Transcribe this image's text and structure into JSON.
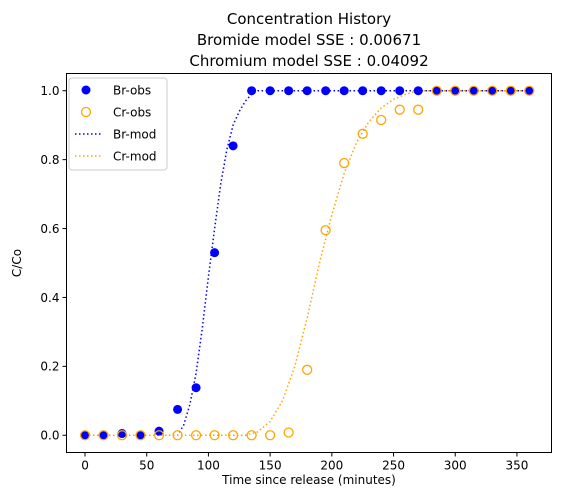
{
  "chart_data": {
    "type": "scatter",
    "title_lines": [
      "Concentration History",
      "Bromide model SSE : 0.00671",
      "Chromium model SSE : 0.04092"
    ],
    "xlabel": "Time since release (minutes)",
    "ylabel": "C/Co",
    "xlim": [
      -15,
      378
    ],
    "ylim": [
      -0.05,
      1.05
    ],
    "xticks": [
      0,
      50,
      100,
      150,
      200,
      250,
      300,
      350
    ],
    "yticks": [
      0.0,
      0.2,
      0.4,
      0.6,
      0.8,
      1.0
    ],
    "ytick_labels": [
      "0.0",
      "0.2",
      "0.4",
      "0.6",
      "0.8",
      "1.0"
    ],
    "grid": false,
    "legend_position": "upper-left",
    "series": [
      {
        "name": "Br-obs",
        "kind": "marker-filled",
        "color": "#0000ff",
        "x": [
          0,
          15,
          30,
          45,
          60,
          75,
          90,
          105,
          120,
          135,
          150,
          165,
          180,
          195,
          210,
          225,
          240,
          255,
          270,
          285,
          300,
          315,
          330,
          345,
          360
        ],
        "y": [
          0.0,
          0.0,
          0.005,
          0.0,
          0.012,
          0.075,
          0.138,
          0.53,
          0.84,
          1.0,
          1.0,
          1.0,
          1.0,
          1.0,
          1.0,
          1.0,
          1.0,
          1.0,
          1.0,
          1.0,
          1.0,
          1.0,
          1.0,
          1.0,
          1.0
        ]
      },
      {
        "name": "Cr-obs",
        "kind": "marker-open",
        "color": "#ffa500",
        "x": [
          0,
          15,
          30,
          45,
          60,
          75,
          90,
          105,
          120,
          135,
          150,
          165,
          180,
          195,
          210,
          225,
          240,
          255,
          270,
          285,
          300,
          315,
          330,
          345,
          360
        ],
        "y": [
          0.0,
          0.0,
          0.0,
          0.0,
          0.0,
          0.0,
          0.0,
          0.0,
          0.0,
          0.0,
          0.0,
          0.008,
          0.19,
          0.595,
          0.79,
          0.875,
          0.915,
          0.945,
          0.945,
          1.0,
          1.0,
          1.0,
          1.0,
          1.0,
          1.0
        ]
      },
      {
        "name": "Br-mod",
        "kind": "line-dotted",
        "color": "#0000ff",
        "x": [
          0,
          15,
          30,
          45,
          60,
          75,
          80,
          85,
          90,
          95,
          100,
          105,
          110,
          115,
          120,
          125,
          130,
          135,
          140,
          150,
          165,
          180,
          200,
          250,
          300,
          360
        ],
        "y": [
          0.0,
          0.0,
          0.0,
          0.0,
          0.0,
          0.0,
          0.03,
          0.09,
          0.18,
          0.31,
          0.46,
          0.6,
          0.73,
          0.83,
          0.9,
          0.94,
          0.97,
          0.99,
          1.0,
          1.0,
          1.0,
          1.0,
          1.0,
          1.0,
          1.0,
          1.0
        ]
      },
      {
        "name": "Cr-mod",
        "kind": "line-dotted",
        "color": "#ffa500",
        "x": [
          0,
          30,
          60,
          90,
          120,
          130,
          140,
          150,
          160,
          170,
          180,
          190,
          200,
          210,
          220,
          230,
          240,
          250,
          260,
          270,
          285,
          300,
          330,
          360
        ],
        "y": [
          0.0,
          0.0,
          0.0,
          0.0,
          0.0,
          0.0,
          0.01,
          0.04,
          0.1,
          0.2,
          0.34,
          0.5,
          0.64,
          0.76,
          0.85,
          0.91,
          0.95,
          0.975,
          0.99,
          1.0,
          1.0,
          1.0,
          1.0,
          1.0
        ]
      }
    ]
  }
}
